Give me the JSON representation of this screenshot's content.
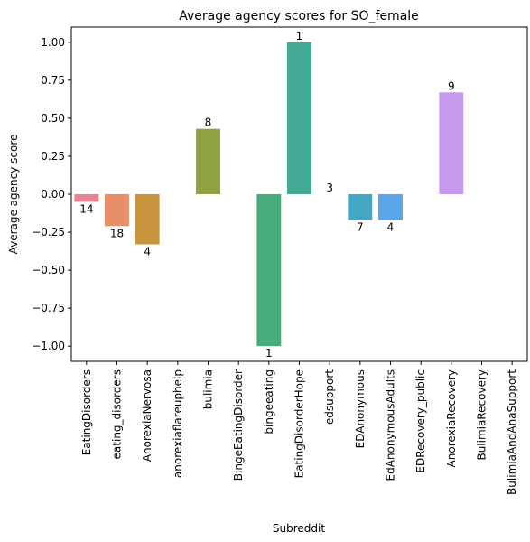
{
  "chart_data": {
    "type": "bar",
    "title": "Average agency scores for SO_female",
    "xlabel": "Subreddit",
    "ylabel": "Average agency score",
    "ylim": [
      -1.1,
      1.1
    ],
    "yticks": [
      -1.0,
      -0.75,
      -0.5,
      -0.25,
      0.0,
      0.25,
      0.5,
      0.75,
      1.0
    ],
    "ytick_labels": [
      "−1.00",
      "−0.75",
      "−0.50",
      "−0.25",
      "0.00",
      "0.25",
      "0.50",
      "0.75",
      "1.00"
    ],
    "grid": false,
    "categories": [
      "EatingDisorders",
      "eating_disorders",
      "AnorexiaNervosa",
      "anorexiaflareuphelp",
      "bulimia",
      "BingeEatingDisorder",
      "bingeeating",
      "EatingDisorderHope",
      "edsupport",
      "EDAnonymous",
      "EdAnonymousAdults",
      "EDRecovery_public",
      "AnorexiaRecovery",
      "BulimiaRecovery",
      "BulimiaAndAnaSupport"
    ],
    "values": [
      -0.05,
      -0.21,
      -0.33,
      0,
      0.43,
      0,
      -1.0,
      1.0,
      0,
      -0.17,
      -0.17,
      0,
      0.67,
      0,
      0
    ],
    "counts": [
      "14",
      "18",
      "4",
      "",
      "8",
      "",
      "1",
      "1",
      "3",
      "7",
      "4",
      "",
      "9",
      "",
      ""
    ],
    "colors": [
      "#ea8394",
      "#e88f6a",
      "#c9943e",
      "#b39d3c",
      "#8fa440",
      "#5aae46",
      "#47ac7c",
      "#43aa94",
      "#45a8a8",
      "#44a6c0",
      "#5ba6e6",
      "#9b9be9",
      "#c799ec",
      "#e584d6",
      "#ec8ab9"
    ]
  }
}
